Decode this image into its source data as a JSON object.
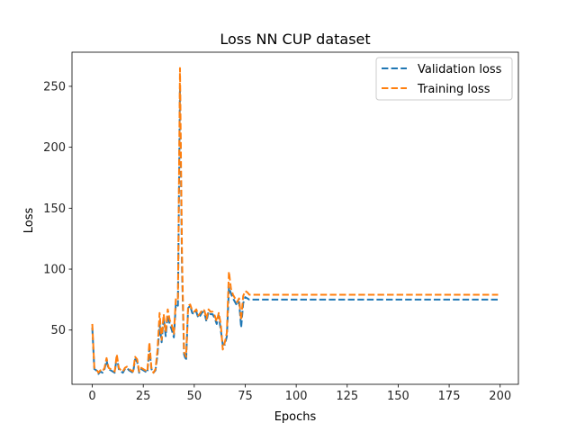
{
  "chart_data": {
    "type": "line",
    "title": "Loss NN CUP dataset",
    "xlabel": "Epochs",
    "ylabel": "Loss",
    "xlim": [
      -9.95,
      208.95
    ],
    "ylim": [
      5.5,
      278
    ],
    "xticks": [
      0,
      25,
      50,
      75,
      100,
      125,
      150,
      175,
      200
    ],
    "yticks": [
      50,
      100,
      150,
      200,
      250
    ],
    "grid": false,
    "legend": "top-right",
    "series": [
      {
        "name": "Validation loss",
        "color": "#1f77b4",
        "style": "dashed",
        "x": [
          0,
          1,
          2,
          3,
          4,
          5,
          6,
          7,
          8,
          9,
          10,
          11,
          12,
          13,
          14,
          15,
          16,
          17,
          18,
          19,
          20,
          21,
          22,
          23,
          24,
          25,
          26,
          27,
          28,
          29,
          30,
          31,
          32,
          33,
          34,
          35,
          36,
          37,
          38,
          39,
          40,
          41,
          42,
          43,
          44,
          45,
          46,
          47,
          48,
          49,
          50,
          51,
          52,
          53,
          54,
          55,
          56,
          57,
          58,
          59,
          60,
          61,
          62,
          63,
          64,
          65,
          66,
          67,
          68,
          69,
          70,
          71,
          72,
          73,
          74,
          75,
          76,
          77,
          78,
          79,
          80,
          199
        ],
        "y": [
          52,
          18,
          17,
          14,
          16,
          15,
          18,
          25,
          18,
          17,
          16,
          15,
          28,
          18,
          16,
          15,
          18,
          19,
          17,
          16,
          15,
          26,
          24,
          15,
          18,
          17,
          16,
          15,
          35,
          18,
          15,
          17,
          30,
          55,
          40,
          60,
          45,
          62,
          55,
          50,
          44,
          72,
          70,
          250,
          100,
          30,
          25,
          68,
          70,
          64,
          63,
          65,
          60,
          62,
          65,
          64,
          57,
          65,
          63,
          63,
          60,
          55,
          62,
          50,
          38,
          38,
          45,
          85,
          80,
          76,
          73,
          70,
          73,
          52,
          72,
          77,
          76,
          75,
          75,
          75,
          75,
          75
        ],
        "y_note_removed": true
      },
      {
        "name": "Training loss",
        "color": "#ff7f0e",
        "style": "dashed",
        "x": [
          0,
          1,
          2,
          3,
          4,
          5,
          6,
          7,
          8,
          9,
          10,
          11,
          12,
          13,
          14,
          15,
          16,
          17,
          18,
          19,
          20,
          21,
          22,
          23,
          24,
          25,
          26,
          27,
          28,
          29,
          30,
          31,
          32,
          33,
          34,
          35,
          36,
          37,
          38,
          39,
          40,
          41,
          42,
          43,
          44,
          45,
          46,
          47,
          48,
          49,
          50,
          51,
          52,
          53,
          54,
          55,
          56,
          57,
          58,
          59,
          60,
          61,
          62,
          63,
          64,
          65,
          66,
          67,
          68,
          69,
          70,
          71,
          72,
          73,
          74,
          75,
          76,
          77,
          78,
          79,
          80,
          199
        ],
        "y": [
          55,
          19,
          18,
          15,
          17,
          16,
          19,
          27,
          19,
          18,
          17,
          16,
          30,
          19,
          17,
          16,
          19,
          20,
          18,
          17,
          16,
          28,
          26,
          16,
          19,
          18,
          17,
          16,
          40,
          19,
          15,
          18,
          34,
          64,
          42,
          63,
          48,
          67,
          58,
          54,
          47,
          76,
          75,
          265,
          110,
          32,
          28,
          70,
          71,
          66,
          65,
          67,
          62,
          64,
          67,
          66,
          59,
          67,
          65,
          65,
          62,
          57,
          64,
          55,
          34,
          40,
          48,
          98,
          84,
          79,
          76,
          73,
          76,
          58,
          78,
          82,
          81,
          79,
          79,
          79,
          79,
          79
        ]
      }
    ]
  }
}
